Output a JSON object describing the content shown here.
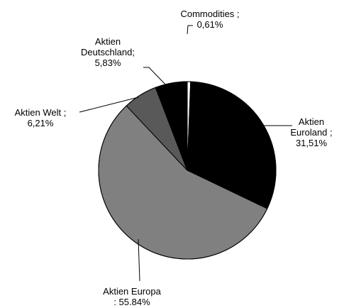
{
  "chart_data": {
    "type": "pie",
    "title": "",
    "slices": [
      {
        "label_lines": [
          "Commodities ;",
          "0,61%"
        ],
        "value": 0.61,
        "color": "#ffffff"
      },
      {
        "label_lines": [
          "Aktien",
          "Euroland ;",
          "31,51%"
        ],
        "value": 31.51,
        "color": "#000000"
      },
      {
        "label_lines": [
          "Aktien Europa",
          ": 55.84%"
        ],
        "value": 55.84,
        "color": "#808080"
      },
      {
        "label_lines": [
          "Aktien Welt ;",
          "6,21%"
        ],
        "value": 6.21,
        "color": "#595959"
      },
      {
        "label_lines": [
          "Aktien",
          "Deutschland;",
          "5,83%"
        ],
        "value": 5.83,
        "color": "#000000"
      }
    ],
    "start_angle": "12 o'clock",
    "direction": "clockwise",
    "legend": "none"
  }
}
